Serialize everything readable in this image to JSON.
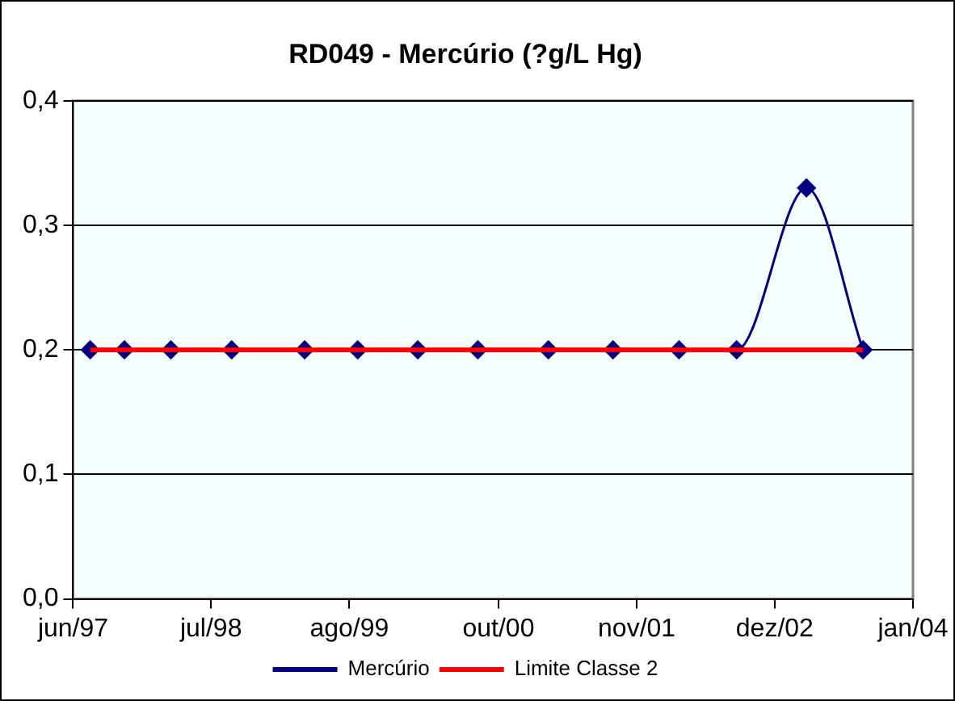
{
  "chart_data": {
    "type": "line",
    "title": "RD049 - Mercúrio (?g/L Hg)",
    "xlim": [
      "1997-06-01",
      "2004-01-01"
    ],
    "xticks": [
      {
        "value": "1997-06-01",
        "label": "jun/97"
      },
      {
        "value": "1998-07-01",
        "label": "jul/98"
      },
      {
        "value": "1999-08-01",
        "label": "ago/99"
      },
      {
        "value": "2000-10-01",
        "label": "out/00"
      },
      {
        "value": "2001-11-01",
        "label": "nov/01"
      },
      {
        "value": "2002-12-01",
        "label": "dez/02"
      },
      {
        "value": "2004-01-01",
        "label": "jan/04"
      }
    ],
    "ylim": [
      0,
      0.4
    ],
    "yticks": [
      {
        "value": 0,
        "label": "0,0"
      },
      {
        "value": 0.1,
        "label": "0,1"
      },
      {
        "value": 0.2,
        "label": "0,2"
      },
      {
        "value": 0.3,
        "label": "0,3"
      },
      {
        "value": 0.4,
        "label": "0,4"
      }
    ],
    "grid": "y",
    "legend": "bottom",
    "series": [
      {
        "name": "Mercúrio",
        "color": "#000080",
        "marker": "diamond",
        "x": [
          "1997-07-20",
          "1997-10-26",
          "1998-03-08",
          "1998-08-29",
          "1999-03-26",
          "1999-08-25",
          "2000-02-13",
          "2000-08-03",
          "2001-02-21",
          "2001-08-25",
          "2002-03-02",
          "2002-08-14",
          "2003-03-02",
          "2003-08-11"
        ],
        "values": [
          0.2,
          0.2,
          0.2,
          0.2,
          0.2,
          0.2,
          0.2,
          0.2,
          0.2,
          0.2,
          0.2,
          0.2,
          0.33,
          0.2
        ]
      },
      {
        "name": "Limite Classe 2",
        "color": "#ff0000",
        "marker": "none",
        "x": [
          "1997-07-20",
          "2003-08-11"
        ],
        "values": [
          0.2,
          0.2
        ]
      }
    ]
  }
}
